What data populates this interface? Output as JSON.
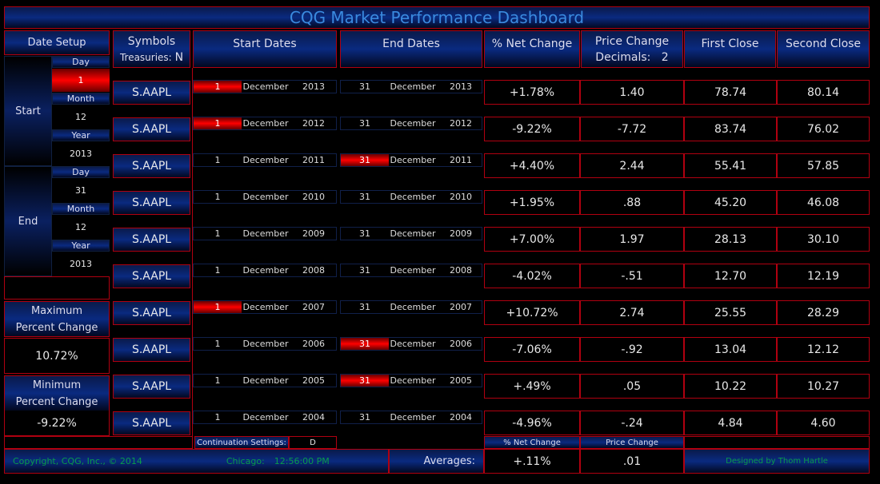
{
  "title": "CQG Market Performance Dashboard",
  "date_setup": {
    "label": "Date Setup",
    "start_label": "Start",
    "end_label": "End",
    "day_label": "Day",
    "month_label": "Month",
    "year_label": "Year",
    "start": {
      "day": "1",
      "month": "12",
      "year": "2013"
    },
    "end": {
      "day": "31",
      "month": "12",
      "year": "2013"
    }
  },
  "max": {
    "label": "Maximum Percent Change",
    "value": "10.72%"
  },
  "min": {
    "label": "Minimum Percent Change",
    "value": "-9.22%"
  },
  "headers": {
    "symbols": "Symbols",
    "treasuries_label": "Treasuries:",
    "treasuries_value": "N",
    "start_dates": "Start Dates",
    "end_dates": "End Dates",
    "net_change": "% Net Change",
    "price_change": "Price Change",
    "decimals_label": "Decimals:",
    "decimals_value": "2",
    "first_close": "First Close",
    "second_close": "Second Close"
  },
  "rows": [
    {
      "symbol": "S.AAPL",
      "sd": "1",
      "sm": "December",
      "sy": "2013",
      "ed": "31",
      "em": "December",
      "ey": "2013",
      "net": "+1.78%",
      "price": "1.40",
      "first": "78.74",
      "second": "80.14",
      "s_red": true,
      "e_red": false
    },
    {
      "symbol": "S.AAPL",
      "sd": "1",
      "sm": "December",
      "sy": "2012",
      "ed": "31",
      "em": "December",
      "ey": "2012",
      "net": "-9.22%",
      "price": "-7.72",
      "first": "83.74",
      "second": "76.02",
      "s_red": true,
      "e_red": false
    },
    {
      "symbol": "S.AAPL",
      "sd": "1",
      "sm": "December",
      "sy": "2011",
      "ed": "31",
      "em": "December",
      "ey": "2011",
      "net": "+4.40%",
      "price": "2.44",
      "first": "55.41",
      "second": "57.85",
      "s_red": false,
      "e_red": true
    },
    {
      "symbol": "S.AAPL",
      "sd": "1",
      "sm": "December",
      "sy": "2010",
      "ed": "31",
      "em": "December",
      "ey": "2010",
      "net": "+1.95%",
      "price": ".88",
      "first": "45.20",
      "second": "46.08",
      "s_red": false,
      "e_red": false
    },
    {
      "symbol": "S.AAPL",
      "sd": "1",
      "sm": "December",
      "sy": "2009",
      "ed": "31",
      "em": "December",
      "ey": "2009",
      "net": "+7.00%",
      "price": "1.97",
      "first": "28.13",
      "second": "30.10",
      "s_red": false,
      "e_red": false
    },
    {
      "symbol": "S.AAPL",
      "sd": "1",
      "sm": "December",
      "sy": "2008",
      "ed": "31",
      "em": "December",
      "ey": "2008",
      "net": "-4.02%",
      "price": "-.51",
      "first": "12.70",
      "second": "12.19",
      "s_red": false,
      "e_red": false
    },
    {
      "symbol": "S.AAPL",
      "sd": "1",
      "sm": "December",
      "sy": "2007",
      "ed": "31",
      "em": "December",
      "ey": "2007",
      "net": "+10.72%",
      "price": "2.74",
      "first": "25.55",
      "second": "28.29",
      "s_red": true,
      "e_red": false
    },
    {
      "symbol": "S.AAPL",
      "sd": "1",
      "sm": "December",
      "sy": "2006",
      "ed": "31",
      "em": "December",
      "ey": "2006",
      "net": "-7.06%",
      "price": "-.92",
      "first": "13.04",
      "second": "12.12",
      "s_red": false,
      "e_red": true
    },
    {
      "symbol": "S.AAPL",
      "sd": "1",
      "sm": "December",
      "sy": "2005",
      "ed": "31",
      "em": "December",
      "ey": "2005",
      "net": "+.49%",
      "price": ".05",
      "first": "10.22",
      "second": "10.27",
      "s_red": false,
      "e_red": true
    },
    {
      "symbol": "S.AAPL",
      "sd": "1",
      "sm": "December",
      "sy": "2004",
      "ed": "31",
      "em": "December",
      "ey": "2004",
      "net": "-4.96%",
      "price": "-.24",
      "first": "4.84",
      "second": "4.60",
      "s_red": false,
      "e_red": false
    }
  ],
  "continuation": {
    "label": "Continuation Settings:",
    "value": "D"
  },
  "sub_headers": {
    "net_change": "% Net Change",
    "price_change": "Price Change"
  },
  "footer": {
    "copyright": "Copyright, CQG, Inc., © 2014",
    "city": "Chicago:",
    "time": "12:56:00 PM",
    "averages_label": "Averages:",
    "avg_net": "+.11%",
    "avg_price": ".01",
    "designer": "Designed by Thom Hartle"
  }
}
